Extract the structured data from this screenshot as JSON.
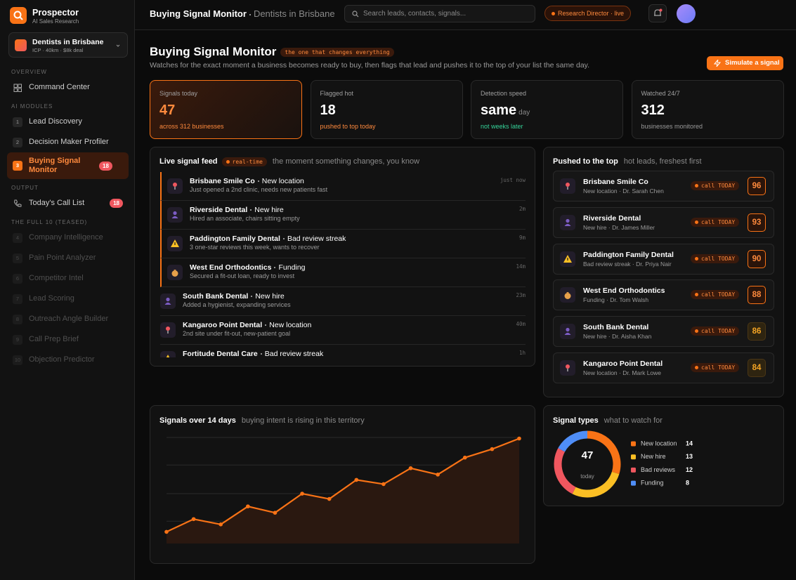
{
  "sidebar": {
    "brand": "Prospector",
    "tagline": "AI Sales Research",
    "workspace": {
      "name": "Dentists in Brisbane",
      "detail": "ICP · 40km · $8k deal"
    },
    "sections": [
      {
        "title": "OVERVIEW",
        "items": [
          {
            "label": "Command Center"
          }
        ]
      },
      {
        "title": "AI MODULES",
        "items": [
          {
            "num": 1,
            "label": "Lead Discovery"
          },
          {
            "num": 2,
            "label": "Decision Maker Profiler"
          },
          {
            "num": 3,
            "label": "Buying Signal Monitor",
            "badge": 18
          }
        ]
      },
      {
        "title": "OUTPUT",
        "items": [
          {
            "label": "Today's Call List",
            "badge": 18
          }
        ]
      },
      {
        "title": "THE FULL 10 (TEASED)",
        "items": [
          {
            "num": 4,
            "label": "Company Intelligence"
          },
          {
            "num": 5,
            "label": "Pain Point Analyzer"
          },
          {
            "num": 6,
            "label": "Competitor Intel"
          },
          {
            "num": 7,
            "label": "Lead Scoring"
          },
          {
            "num": 8,
            "label": "Outreach Angle Builder"
          },
          {
            "num": 9,
            "label": "Call Prep Brief"
          },
          {
            "num": 10,
            "label": "Objection Predictor"
          }
        ]
      }
    ]
  },
  "header": {
    "title": "Buying Signal Monitor",
    "subtitle": "Dentists in Brisbane",
    "search": "Search leads, contacts, signals...",
    "status": "Research Director · live"
  },
  "page": {
    "title": "Buying Signal Monitor",
    "tag": "the one that changes everything",
    "description": "Watches for the exact moment a business becomes ready to buy, then flags that lead and pushes it to the top of your list the same day.",
    "action": "Simulate a signal"
  },
  "stats": [
    {
      "label": "Signals today",
      "value": 47,
      "note": "across 312 businesses"
    },
    {
      "label": "Flagged hot",
      "value": 18,
      "note": "pushed to top today"
    },
    {
      "label": "Detection speed",
      "value": "same",
      "unit": "day",
      "note": "not weeks later"
    },
    {
      "label": "Watched 24/7",
      "value": 312,
      "note": "businesses monitored"
    }
  ],
  "feed": {
    "title": "Live signal feed",
    "tag": "real-time",
    "subtitle": "the moment something changes, you know",
    "items": [
      {
        "name": "Brisbane Smile Co",
        "event": "New location",
        "description": "Just opened a 2nd clinic, needs new patients fast",
        "time": "just now"
      },
      {
        "name": "Riverside Dental",
        "event": "New hire",
        "description": "Hired an associate, chairs sitting empty",
        "time": "2m"
      },
      {
        "name": "Paddington Family Dental",
        "event": "Bad review streak",
        "description": "3 one-star reviews this week, wants to recover",
        "time": "9m"
      },
      {
        "name": "West End Orthodontics",
        "event": "Funding",
        "description": "Secured a fit-out loan, ready to invest",
        "time": "14m"
      },
      {
        "name": "South Bank Dental",
        "event": "New hire",
        "description": "Added a hygienist, expanding services",
        "time": "23m"
      },
      {
        "name": "Kangaroo Point Dental",
        "event": "New location",
        "description": "2nd site under fit-out, new-patient goal",
        "time": "40m"
      },
      {
        "name": "Fortitude Dental Care",
        "event": "Bad review streak",
        "description": "",
        "time": "1h"
      }
    ]
  },
  "pushed": {
    "title": "Pushed to the top",
    "subtitle": "hot leads, freshest first",
    "cta": "call TODAY",
    "items": [
      {
        "name": "Brisbane Smile Co",
        "detail": "New location · Dr. Sarah Chen",
        "score": 96
      },
      {
        "name": "Riverside Dental",
        "detail": "New hire · Dr. James Miller",
        "score": 93
      },
      {
        "name": "Paddington Family Dental",
        "detail": "Bad review streak · Dr. Priya Nair",
        "score": 90
      },
      {
        "name": "West End Orthodontics",
        "detail": "Funding · Dr. Tom Walsh",
        "score": 88
      },
      {
        "name": "South Bank Dental",
        "detail": "New hire · Dr. Aisha Khan",
        "score": 86
      },
      {
        "name": "Kangaroo Point Dental",
        "detail": "New location · Dr. Mark Lowe",
        "score": 84
      }
    ]
  },
  "chart_data": [
    {
      "type": "line",
      "title": "Signals over 14 days",
      "subtitle": "buying intent is rising in this territory",
      "categories": [
        null,
        null,
        null,
        null,
        null,
        null,
        null,
        null,
        null,
        null,
        null,
        null,
        null,
        null
      ],
      "values": [
        11,
        23,
        18,
        35,
        29,
        47,
        42,
        60,
        56,
        71,
        65,
        81,
        89,
        99
      ],
      "color": "#f97316",
      "ylim": [
        0,
        100
      ],
      "yticks": [
        21,
        47,
        74,
        100
      ],
      "grid": true
    },
    {
      "type": "pie",
      "title": "Signal types",
      "subtitle": "what to watch for",
      "total": 47,
      "center_label": "today",
      "categories": [
        "New location",
        "New hire",
        "Bad reviews",
        "Funding"
      ],
      "values": [
        14,
        13,
        12,
        8
      ],
      "colors": [
        "#f97316",
        "#fbbf24",
        "#f0575f",
        "#4f8ef7"
      ]
    }
  ]
}
